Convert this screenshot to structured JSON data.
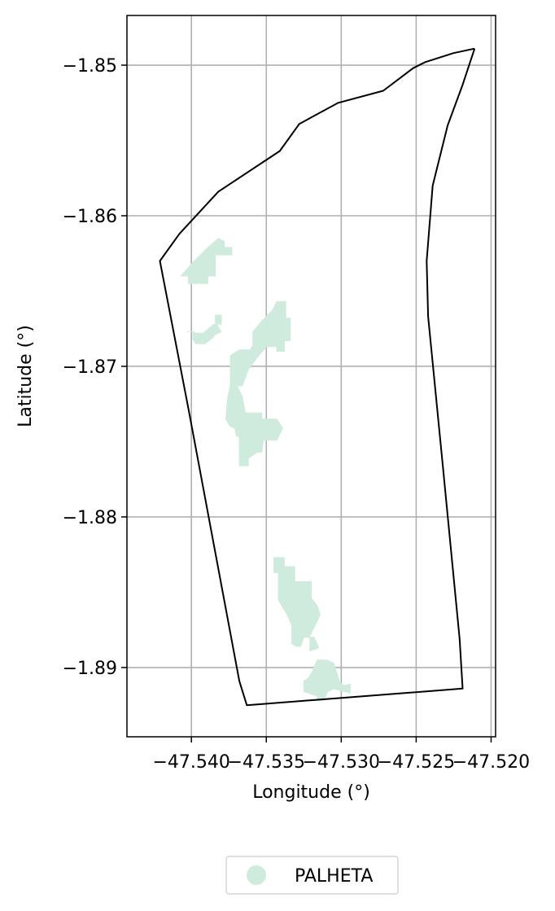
{
  "chart_data": {
    "type": "map",
    "xlabel": "Longitude (°)",
    "ylabel": "Latitude (°)",
    "xlim": [
      -47.5443,
      -47.5197
    ],
    "ylim": [
      -1.8946,
      -1.8467
    ],
    "x_ticks": [
      -47.54,
      -47.535,
      -47.53,
      -47.525,
      -47.52
    ],
    "x_tick_labels": [
      "−47.540",
      "−47.535",
      "−47.530",
      "−47.525",
      "−47.520"
    ],
    "y_ticks": [
      -1.85,
      -1.86,
      -1.87,
      -1.88,
      -1.89
    ],
    "y_tick_labels": [
      "−1.85",
      "−1.86",
      "−1.87",
      "−1.88",
      "−1.89"
    ],
    "grid": true,
    "legend": {
      "placement": "bottom-center",
      "entries": [
        {
          "label": "PALHETA",
          "color": "#cfebde",
          "marker": "circle"
        }
      ]
    },
    "boundary": {
      "color": "#000000",
      "coordinates": [
        [
          -47.5211,
          -1.8489
        ],
        [
          -47.5225,
          -1.8492
        ],
        [
          -47.5244,
          -1.8498
        ],
        [
          -47.5252,
          -1.8502
        ],
        [
          -47.5272,
          -1.8517
        ],
        [
          -47.5302,
          -1.8525
        ],
        [
          -47.5328,
          -1.8539
        ],
        [
          -47.5341,
          -1.8557
        ],
        [
          -47.5382,
          -1.8584
        ],
        [
          -47.5408,
          -1.8612
        ],
        [
          -47.5421,
          -1.863
        ],
        [
          -47.5402,
          -1.8728
        ],
        [
          -47.5368,
          -1.8909
        ],
        [
          -47.5363,
          -1.8925
        ],
        [
          -47.5219,
          -1.8914
        ],
        [
          -47.5221,
          -1.8881
        ],
        [
          -47.5232,
          -1.8768
        ],
        [
          -47.5242,
          -1.8667
        ],
        [
          -47.5243,
          -1.863
        ],
        [
          -47.5239,
          -1.858
        ],
        [
          -47.5229,
          -1.854
        ],
        [
          -47.5219,
          -1.8513
        ],
        [
          -47.5211,
          -1.8489
        ]
      ]
    },
    "features": [
      {
        "name": "PALHETA",
        "color": "#cfebde",
        "polygons": [
          [
            [
              -47.5407,
              -1.864
            ],
            [
              -47.5399,
              -1.8631
            ],
            [
              -47.539,
              -1.8622
            ],
            [
              -47.5382,
              -1.8615
            ],
            [
              -47.5378,
              -1.8617
            ],
            [
              -47.5378,
              -1.8621
            ],
            [
              -47.5373,
              -1.8621
            ],
            [
              -47.5373,
              -1.8626
            ],
            [
              -47.5384,
              -1.8626
            ],
            [
              -47.5384,
              -1.864
            ],
            [
              -47.5389,
              -1.864
            ],
            [
              -47.5389,
              -1.8645
            ],
            [
              -47.5402,
              -1.8645
            ],
            [
              -47.5402,
              -1.864
            ],
            [
              -47.5407,
              -1.864
            ]
          ],
          [
            [
              -47.5403,
              -1.8677
            ],
            [
              -47.5399,
              -1.8677
            ],
            [
              -47.5399,
              -1.8682
            ],
            [
              -47.5397,
              -1.8685
            ],
            [
              -47.5391,
              -1.8685
            ],
            [
              -47.5387,
              -1.8682
            ],
            [
              -47.5384,
              -1.8679
            ],
            [
              -47.538,
              -1.8677
            ],
            [
              -47.5382,
              -1.8674
            ],
            [
              -47.5384,
              -1.8671
            ],
            [
              -47.5384,
              -1.8666
            ],
            [
              -47.538,
              -1.8666
            ],
            [
              -47.538,
              -1.8672
            ],
            [
              -47.5385,
              -1.8672
            ],
            [
              -47.5392,
              -1.8678
            ],
            [
              -47.5397,
              -1.8678
            ],
            [
              -47.5399,
              -1.8677
            ],
            [
              -47.5403,
              -1.8677
            ]
          ],
          [
            [
              -47.5374,
              -1.8712
            ],
            [
              -47.5374,
              -1.8693
            ],
            [
              -47.5368,
              -1.8689
            ],
            [
              -47.5361,
              -1.8689
            ],
            [
              -47.5359,
              -1.8686
            ],
            [
              -47.5359,
              -1.8677
            ],
            [
              -47.5353,
              -1.867
            ],
            [
              -47.5346,
              -1.8663
            ],
            [
              -47.5343,
              -1.8657
            ],
            [
              -47.5337,
              -1.8657
            ],
            [
              -47.5337,
              -1.8668
            ],
            [
              -47.5334,
              -1.8668
            ],
            [
              -47.5334,
              -1.8683
            ],
            [
              -47.5338,
              -1.8683
            ],
            [
              -47.5338,
              -1.869
            ],
            [
              -47.5343,
              -1.869
            ],
            [
              -47.5343,
              -1.8687
            ],
            [
              -47.535,
              -1.8687
            ],
            [
              -47.5356,
              -1.8694
            ],
            [
              -47.5362,
              -1.8702
            ],
            [
              -47.5366,
              -1.8713
            ],
            [
              -47.537,
              -1.8713
            ],
            [
              -47.5374,
              -1.8712
            ]
          ],
          [
            [
              -47.5374,
              -1.8712
            ],
            [
              -47.5376,
              -1.8722
            ],
            [
              -47.5377,
              -1.8735
            ],
            [
              -47.5374,
              -1.874
            ],
            [
              -47.5371,
              -1.8741
            ],
            [
              -47.537,
              -1.8746
            ],
            [
              -47.5368,
              -1.8747
            ],
            [
              -47.5368,
              -1.8766
            ],
            [
              -47.5362,
              -1.8766
            ],
            [
              -47.5362,
              -1.8761
            ],
            [
              -47.5356,
              -1.8757
            ],
            [
              -47.5353,
              -1.8757
            ],
            [
              -47.5352,
              -1.8749
            ],
            [
              -47.5343,
              -1.8749
            ],
            [
              -47.5339,
              -1.8741
            ],
            [
              -47.5343,
              -1.8735
            ],
            [
              -47.5353,
              -1.8735
            ],
            [
              -47.5353,
              -1.8731
            ],
            [
              -47.5364,
              -1.8731
            ],
            [
              -47.5366,
              -1.872
            ],
            [
              -47.537,
              -1.8712
            ],
            [
              -47.5374,
              -1.8712
            ]
          ],
          [
            [
              -47.5345,
              -1.8827
            ],
            [
              -47.5345,
              -1.8837
            ],
            [
              -47.5342,
              -1.8837
            ],
            [
              -47.5342,
              -1.8855
            ],
            [
              -47.5336,
              -1.8865
            ],
            [
              -47.5333,
              -1.8872
            ],
            [
              -47.5333,
              -1.8884
            ],
            [
              -47.533,
              -1.8886
            ],
            [
              -47.5327,
              -1.8886
            ],
            [
              -47.5325,
              -1.888
            ],
            [
              -47.5318,
              -1.888
            ],
            [
              -47.5315,
              -1.8887
            ],
            [
              -47.5321,
              -1.8889
            ],
            [
              -47.5321,
              -1.8879
            ],
            [
              -47.5314,
              -1.8865
            ],
            [
              -47.5316,
              -1.8859
            ],
            [
              -47.532,
              -1.8854
            ],
            [
              -47.532,
              -1.8843
            ],
            [
              -47.5331,
              -1.8843
            ],
            [
              -47.5331,
              -1.8833
            ],
            [
              -47.5338,
              -1.8833
            ],
            [
              -47.5338,
              -1.8827
            ],
            [
              -47.5345,
              -1.8827
            ]
          ],
          [
            [
              -47.5325,
              -1.8909
            ],
            [
              -47.5325,
              -1.8916
            ],
            [
              -47.5316,
              -1.8919
            ],
            [
              -47.5316,
              -1.8922
            ],
            [
              -47.5312,
              -1.8922
            ],
            [
              -47.5309,
              -1.8916
            ],
            [
              -47.5305,
              -1.8914
            ],
            [
              -47.5298,
              -1.8916
            ],
            [
              -47.5294,
              -1.8917
            ],
            [
              -47.5294,
              -1.8911
            ],
            [
              -47.5298,
              -1.8912
            ],
            [
              -47.5301,
              -1.891
            ],
            [
              -47.5305,
              -1.8897
            ],
            [
              -47.531,
              -1.8895
            ],
            [
              -47.5316,
              -1.8895
            ],
            [
              -47.532,
              -1.8904
            ],
            [
              -47.5322,
              -1.8907
            ],
            [
              -47.5325,
              -1.8909
            ]
          ]
        ]
      }
    ]
  }
}
